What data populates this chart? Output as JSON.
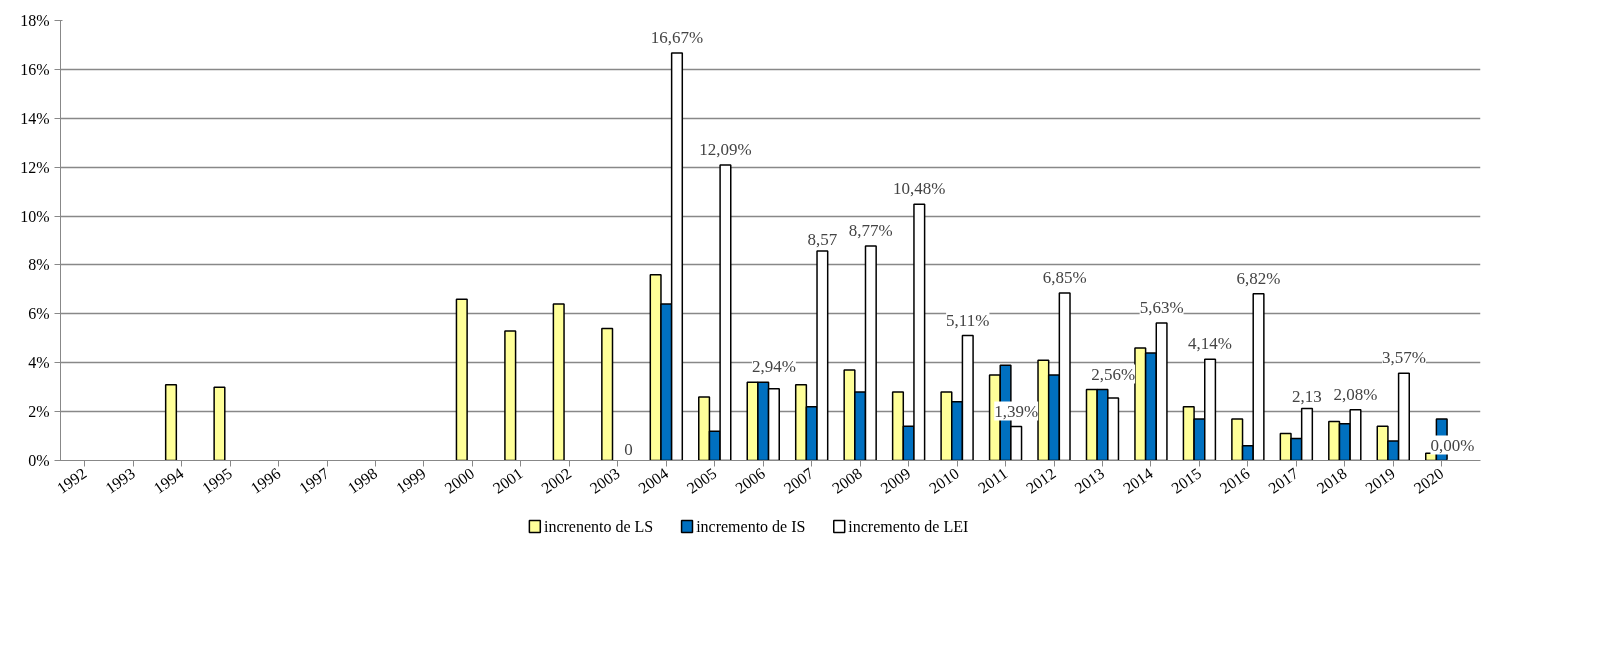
{
  "chart_data": {
    "type": "bar",
    "categories": [
      "1992",
      "1993",
      "1994",
      "1995",
      "1996",
      "1997",
      "1998",
      "1999",
      "2000",
      "2001",
      "2002",
      "2003",
      "2004",
      "2005",
      "2006",
      "2007",
      "2008",
      "2009",
      "2010",
      "2011",
      "2012",
      "2013",
      "2014",
      "2015",
      "2016",
      "2017",
      "2018",
      "2019",
      "2020"
    ],
    "series": [
      {
        "name": "increnento de LS",
        "color": "#ffff99",
        "values": [
          null,
          null,
          3.1,
          3.0,
          null,
          null,
          null,
          null,
          6.6,
          5.3,
          6.4,
          5.4,
          7.6,
          2.6,
          3.2,
          3.1,
          3.7,
          2.8,
          2.8,
          3.5,
          4.1,
          2.9,
          4.6,
          2.2,
          1.7,
          1.1,
          1.6,
          1.4,
          0.3
        ]
      },
      {
        "name": "incremento de IS",
        "color": "#0070c0",
        "values": [
          null,
          null,
          null,
          null,
          null,
          null,
          null,
          null,
          null,
          null,
          null,
          null,
          6.4,
          1.2,
          3.2,
          2.2,
          2.8,
          1.4,
          2.4,
          3.9,
          3.5,
          2.9,
          4.4,
          1.7,
          0.6,
          0.9,
          1.5,
          0.8,
          1.7
        ]
      },
      {
        "name": "incremento de LEI",
        "color": "#ffffff",
        "values": [
          null,
          null,
          null,
          null,
          null,
          null,
          null,
          null,
          null,
          null,
          null,
          0,
          16.67,
          12.09,
          2.94,
          8.57,
          8.77,
          10.48,
          5.11,
          1.39,
          6.85,
          2.56,
          5.63,
          4.14,
          6.82,
          2.13,
          2.08,
          3.57,
          0.0
        ],
        "value_labels": [
          null,
          null,
          null,
          null,
          null,
          null,
          null,
          null,
          null,
          null,
          null,
          "0",
          "16,67%",
          "12,09%",
          "2,94%",
          "8,57",
          "8,77%",
          "10,48%",
          "5,11%",
          "1,39%",
          "6,85%",
          "2,56%",
          "5,63%",
          "4,14%",
          "6,82%",
          "2,13",
          "2,08%",
          "3,57%",
          "0,00%"
        ]
      }
    ],
    "ylim": [
      0,
      18
    ],
    "yticks": [
      {
        "value": 0,
        "label": "0%"
      },
      {
        "value": 2,
        "label": "2%"
      },
      {
        "value": 4,
        "label": "4%"
      },
      {
        "value": 6,
        "label": "6%"
      },
      {
        "value": 8,
        "label": "8%"
      },
      {
        "value": 10,
        "label": "10%"
      },
      {
        "value": 12,
        "label": "12%"
      },
      {
        "value": 14,
        "label": "14%"
      },
      {
        "value": 16,
        "label": "16%"
      },
      {
        "value": 18,
        "label": "18%"
      }
    ],
    "grid": "y",
    "legend": "bottom"
  }
}
